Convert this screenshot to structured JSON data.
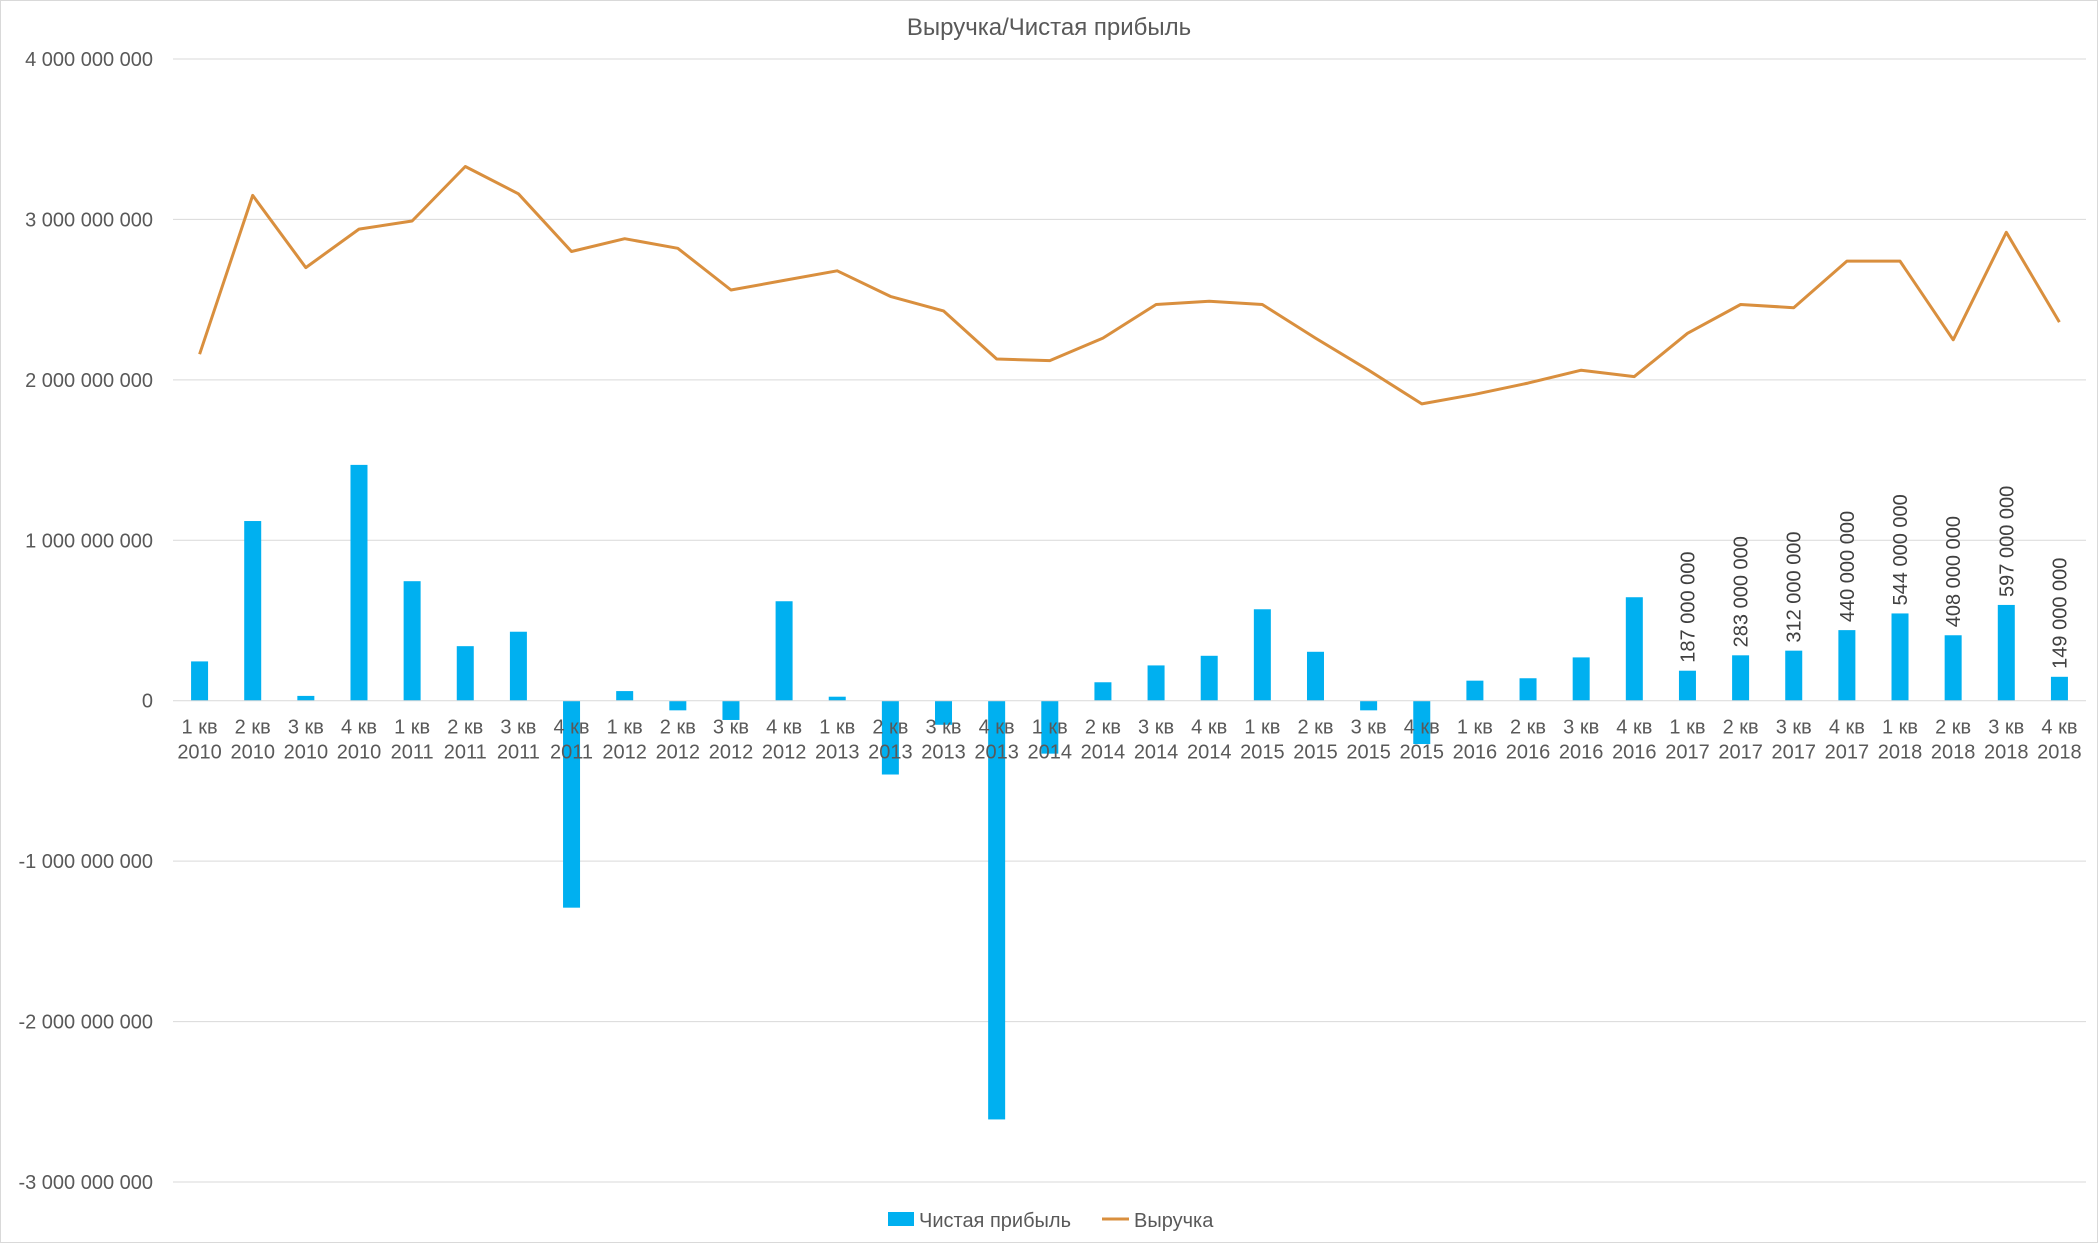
{
  "chart_data": {
    "type": "bar+line",
    "title": "Выручка/Чистая прибыль",
    "categories": [
      [
        "1 кв",
        "2010"
      ],
      [
        "2 кв",
        "2010"
      ],
      [
        "3 кв",
        "2010"
      ],
      [
        "4 кв",
        "2010"
      ],
      [
        "1 кв",
        "2011"
      ],
      [
        "2 кв",
        "2011"
      ],
      [
        "3 кв",
        "2011"
      ],
      [
        "4 кв",
        "2011"
      ],
      [
        "1 кв",
        "2012"
      ],
      [
        "2 кв",
        "2012"
      ],
      [
        "3 кв",
        "2012"
      ],
      [
        "4 кв",
        "2012"
      ],
      [
        "1 кв",
        "2013"
      ],
      [
        "2 кв",
        "2013"
      ],
      [
        "3 кв",
        "2013"
      ],
      [
        "4 кв",
        "2013"
      ],
      [
        "1 кв",
        "2014"
      ],
      [
        "2 кв",
        "2014"
      ],
      [
        "3 кв",
        "2014"
      ],
      [
        "4 кв",
        "2014"
      ],
      [
        "1 кв",
        "2015"
      ],
      [
        "2 кв",
        "2015"
      ],
      [
        "3 кв",
        "2015"
      ],
      [
        "4 кв",
        "2015"
      ],
      [
        "1 кв",
        "2016"
      ],
      [
        "2 кв",
        "2016"
      ],
      [
        "3 кв",
        "2016"
      ],
      [
        "4 кв",
        "2016"
      ],
      [
        "1 кв",
        "2017"
      ],
      [
        "2 кв",
        "2017"
      ],
      [
        "3 кв",
        "2017"
      ],
      [
        "4 кв",
        "2017"
      ],
      [
        "1 кв",
        "2018"
      ],
      [
        "2 кв",
        "2018"
      ],
      [
        "3 кв",
        "2018"
      ],
      [
        "4 кв",
        "2018"
      ]
    ],
    "ylim": [
      -3000000000,
      4000000000
    ],
    "yticks": [
      {
        "value": 4000000000,
        "label": "4 000 000 000"
      },
      {
        "value": 3000000000,
        "label": "3 000 000 000"
      },
      {
        "value": 2000000000,
        "label": "2 000 000 000"
      },
      {
        "value": 1000000000,
        "label": "1 000 000 000"
      },
      {
        "value": 0,
        "label": "0"
      },
      {
        "value": -1000000000,
        "label": "-1 000 000 000"
      },
      {
        "value": -2000000000,
        "label": "-2 000 000 000"
      },
      {
        "value": -3000000000,
        "label": "-3 000 000 000"
      }
    ],
    "grid": true,
    "legend_position": "bottom",
    "series": [
      {
        "name": "Чистая прибыль",
        "type": "bar",
        "color": "#00b0f0",
        "values": [
          245000000,
          1120000000,
          30000000,
          1470000000,
          745000000,
          340000000,
          430000000,
          -1290000000,
          60000000,
          -60000000,
          -120000000,
          620000000,
          25000000,
          -460000000,
          -150000000,
          -2610000000,
          -330000000,
          115000000,
          220000000,
          280000000,
          570000000,
          305000000,
          -60000000,
          -270000000,
          125000000,
          140000000,
          270000000,
          645000000,
          187000000,
          283000000,
          312000000,
          440000000,
          544000000,
          408000000,
          597000000,
          149000000
        ],
        "data_labels": [
          null,
          null,
          null,
          null,
          null,
          null,
          null,
          null,
          null,
          null,
          null,
          null,
          null,
          null,
          null,
          null,
          null,
          null,
          null,
          null,
          null,
          null,
          null,
          null,
          null,
          null,
          null,
          null,
          "187 000 000",
          "283 000 000",
          "312 000 000",
          "440 000 000",
          "544 000 000",
          "408 000 000",
          "597 000 000",
          "149 000 000"
        ]
      },
      {
        "name": "Выручка",
        "type": "line",
        "color": "#d98f3e",
        "values": [
          2160000000,
          3150000000,
          2700000000,
          2940000000,
          2990000000,
          3330000000,
          3160000000,
          2800000000,
          2880000000,
          2820000000,
          2560000000,
          2620000000,
          2680000000,
          2520000000,
          2430000000,
          2130000000,
          2120000000,
          2260000000,
          2470000000,
          2490000000,
          2470000000,
          2260000000,
          2060000000,
          1850000000,
          1910000000,
          1980000000,
          2060000000,
          2020000000,
          2290000000,
          2470000000,
          2450000000,
          2740000000,
          2740000000,
          2250000000,
          2920000000,
          2360000000
        ]
      }
    ]
  }
}
